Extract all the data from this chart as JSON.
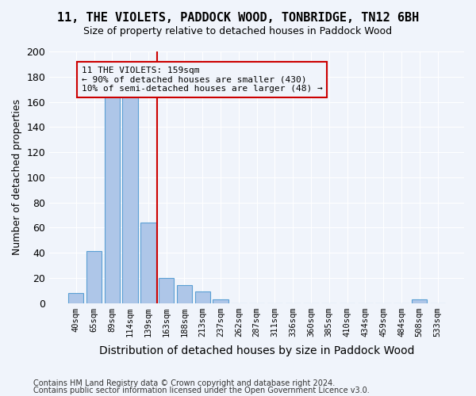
{
  "title1": "11, THE VIOLETS, PADDOCK WOOD, TONBRIDGE, TN12 6BH",
  "title2": "Size of property relative to detached houses in Paddock Wood",
  "xlabel": "Distribution of detached houses by size in Paddock Wood",
  "ylabel": "Number of detached properties",
  "footer1": "Contains HM Land Registry data © Crown copyright and database right 2024.",
  "footer2": "Contains public sector information licensed under the Open Government Licence v3.0.",
  "annotation_title": "11 THE VIOLETS: 159sqm",
  "annotation_line1": "← 90% of detached houses are smaller (430)",
  "annotation_line2": "10% of semi-detached houses are larger (48) →",
  "vline_x_index": 5,
  "bar_color": "#aec6e8",
  "bar_edge_color": "#5a9fd4",
  "vline_color": "#cc0000",
  "annotation_box_color": "#cc0000",
  "background_color": "#f0f4fb",
  "categories": [
    "40sqm",
    "65sqm",
    "89sqm",
    "114sqm",
    "139sqm",
    "163sqm",
    "188sqm",
    "213sqm",
    "237sqm",
    "262sqm",
    "287sqm",
    "311sqm",
    "336sqm",
    "360sqm",
    "385sqm",
    "410sqm",
    "434sqm",
    "459sqm",
    "484sqm",
    "508sqm",
    "533sqm"
  ],
  "values": [
    8,
    41,
    165,
    165,
    64,
    20,
    14,
    9,
    3,
    0,
    0,
    0,
    0,
    0,
    0,
    0,
    0,
    0,
    0,
    3,
    0
  ],
  "ylim": [
    0,
    200
  ],
  "yticks": [
    0,
    20,
    40,
    60,
    80,
    100,
    120,
    140,
    160,
    180,
    200
  ]
}
